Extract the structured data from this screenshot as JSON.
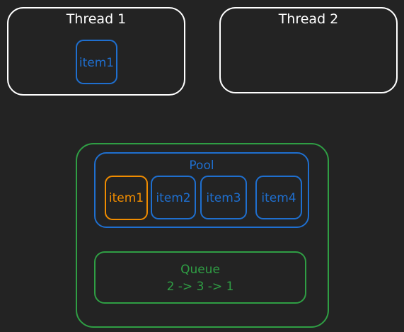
{
  "threads": [
    {
      "title": "Thread 1",
      "item": "item1"
    },
    {
      "title": "Thread 2",
      "item": ""
    }
  ],
  "pool": {
    "title": "Pool",
    "items": [
      "item1",
      "item2",
      "item3",
      "item4"
    ],
    "highlighted_index": 0
  },
  "queue": {
    "title": "Queue",
    "order": "2 -> 3 -> 1"
  },
  "colors": {
    "background": "#232323",
    "thread": "#ffffff",
    "blue": "#1f6fcf",
    "green": "#2f9e44",
    "orange": "#f08c00"
  }
}
